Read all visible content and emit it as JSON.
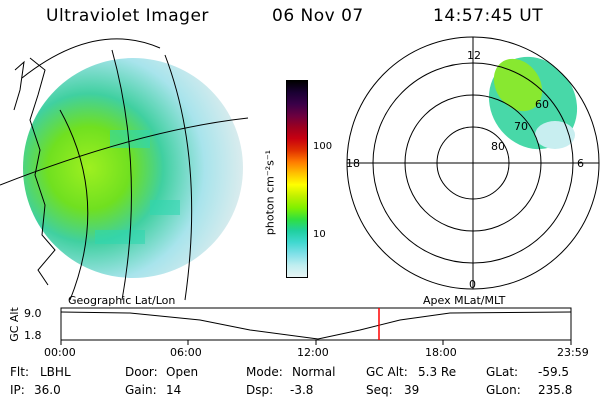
{
  "header": {
    "instrument": "Ultraviolet Imager",
    "date": "06 Nov 07",
    "time": "14:57:45 UT"
  },
  "colorbar": {
    "unit_label": "photon cm⁻²s⁻¹",
    "ticks": [
      "100",
      "10"
    ],
    "colors": [
      "#000000",
      "#1a0033",
      "#3a0048",
      "#6a0040",
      "#9c0020",
      "#c80010",
      "#e03000",
      "#ff7a00",
      "#ffc000",
      "#ffff00",
      "#c0f000",
      "#80f000",
      "#30e040",
      "#20d0a0",
      "#40d8d0",
      "#80e0e8",
      "#c0eef0",
      "#e8f4f4"
    ]
  },
  "geographic_panel": {
    "label": "Geographic Lat/Lon"
  },
  "polar_panel": {
    "label": "Apex MLat/MLT",
    "mlt_labels": {
      "top": "12",
      "left": "18",
      "right": "6",
      "bottom": "0"
    },
    "lat_labels": [
      "60",
      "70",
      "80"
    ]
  },
  "altitude_plot": {
    "axis_label": "GC Alt",
    "y_ticks": [
      "9.0",
      "1.8"
    ],
    "x_ticks": [
      "00:00",
      "06:00",
      "12:00",
      "18:00",
      "23:59"
    ],
    "marker_color": "#ff0000"
  },
  "status": {
    "flt_label": "Flt:",
    "flt_value": "LBHL",
    "ip_label": "IP:",
    "ip_value": "36.0",
    "door_label": "Door:",
    "door_value": "Open",
    "gain_label": "Gain:",
    "gain_value": "14",
    "mode_label": "Mode:",
    "mode_value": "Normal",
    "dsp_label": "Dsp:",
    "dsp_value": "-3.8",
    "gcalt_label": "GC Alt:",
    "gcalt_value": "5.3 Re",
    "seq_label": "Seq:",
    "seq_value": "39",
    "glat_label": "GLat:",
    "glat_value": "-59.5",
    "glon_label": "GLon:",
    "glon_value": "235.8"
  }
}
